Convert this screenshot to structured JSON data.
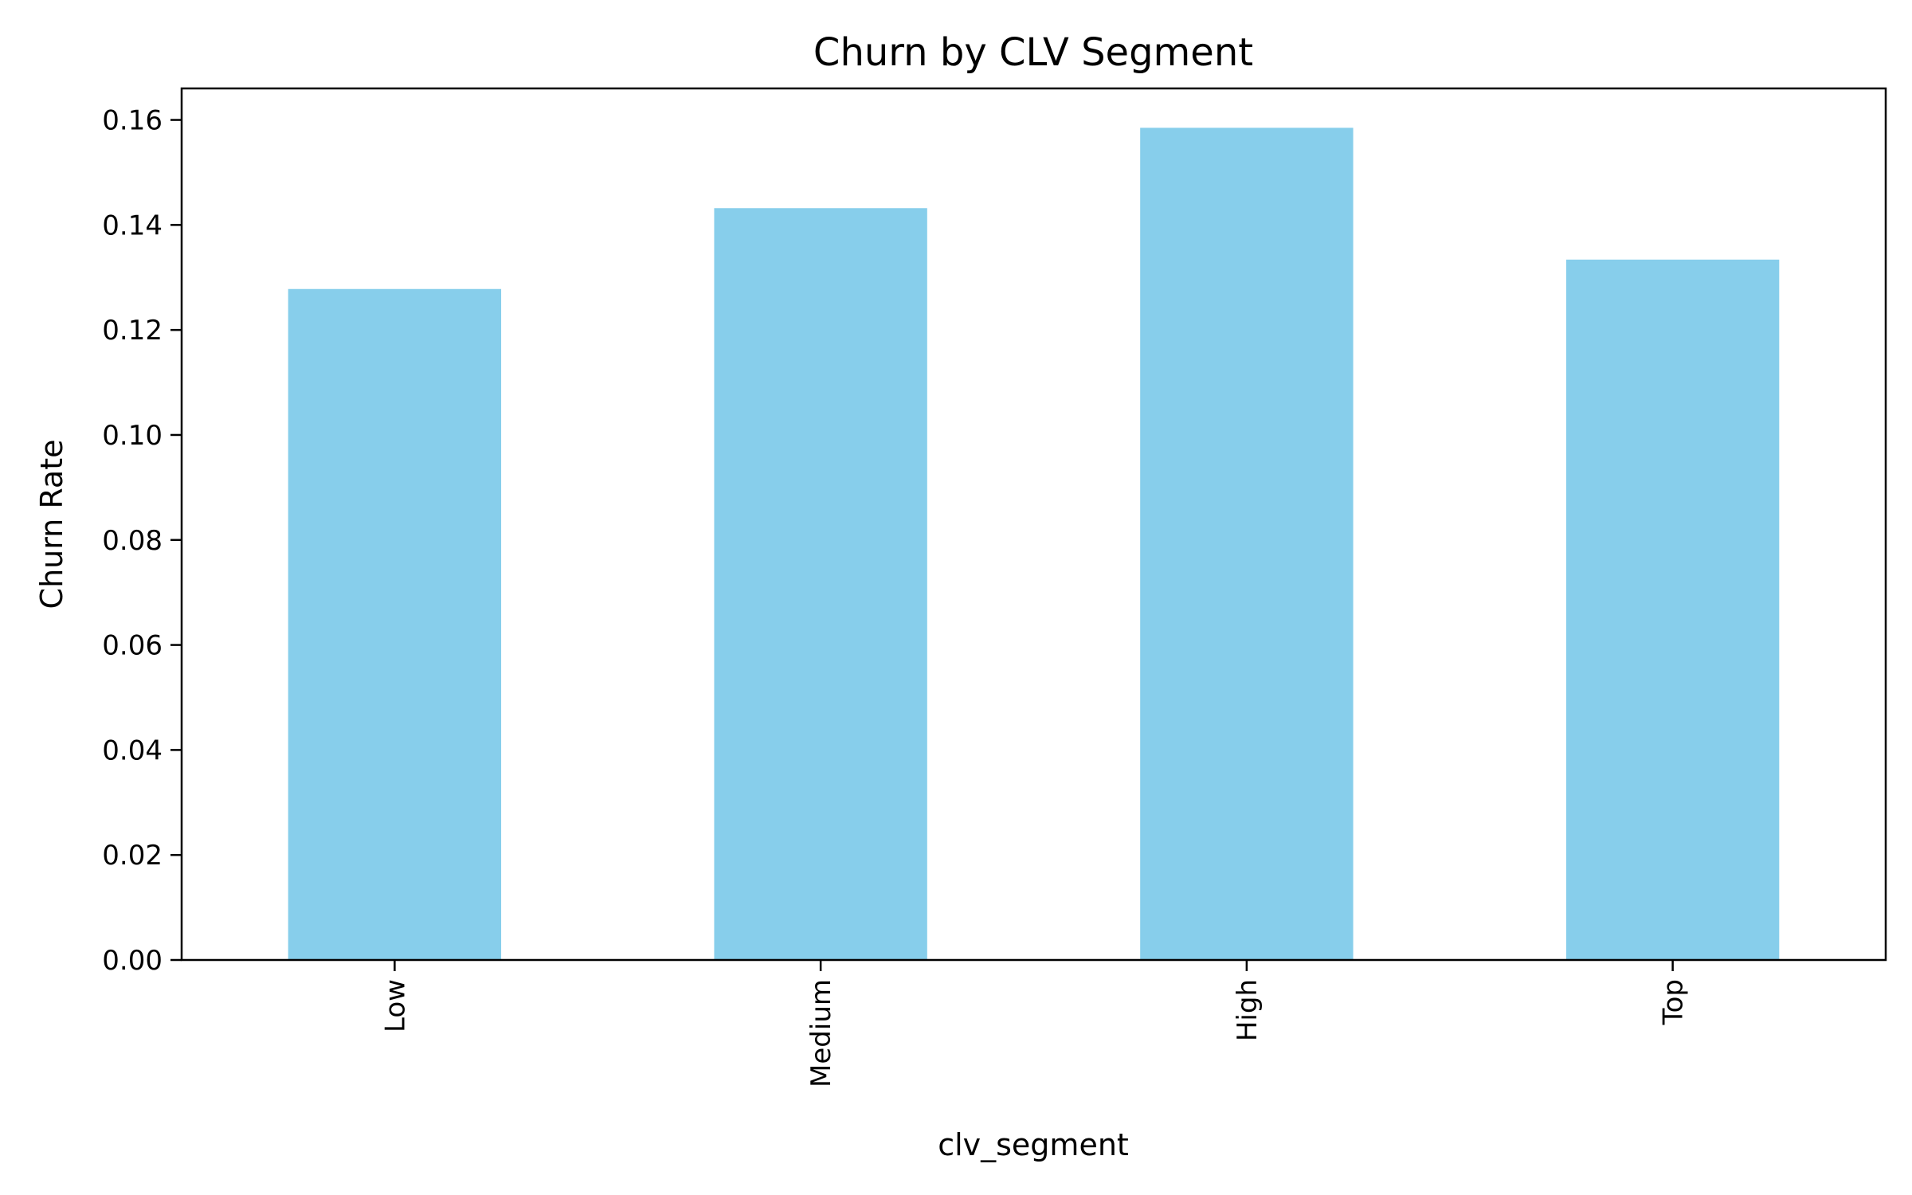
{
  "chart_data": {
    "type": "bar",
    "title": "Churn by CLV Segment",
    "xlabel": "clv_segment",
    "ylabel": "Churn Rate",
    "categories": [
      "Low",
      "Medium",
      "High",
      "Top"
    ],
    "values": [
      0.1278,
      0.1432,
      0.1585,
      0.1334
    ],
    "ylim": [
      0,
      0.166
    ],
    "yticks": [
      "0.00",
      "0.02",
      "0.04",
      "0.06",
      "0.08",
      "0.10",
      "0.12",
      "0.14",
      "0.16"
    ],
    "bar_color": "#87CEEB",
    "grid": false,
    "legend": "none"
  }
}
